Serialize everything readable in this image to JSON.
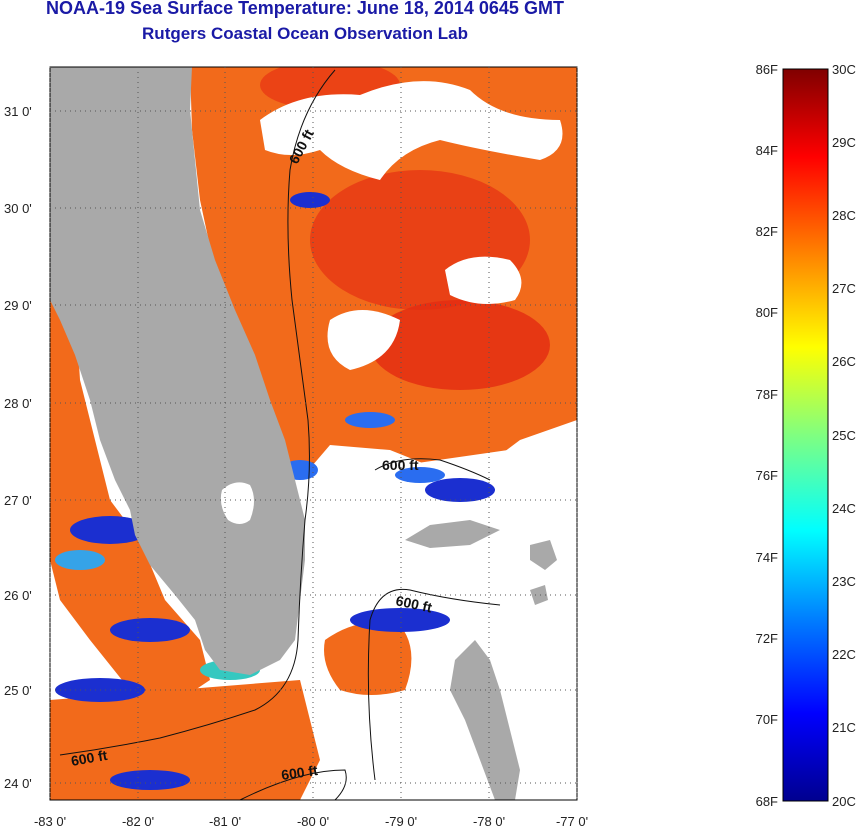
{
  "header": {
    "title_line1": "NOAA-19 Sea Surface Temperature:  June 18, 2014 0645 GMT",
    "title_line2": "Rutgers Coastal Ocean Observation Lab"
  },
  "map": {
    "lat_ticks": [
      "31 0'",
      "30 0'",
      "29 0'",
      "28 0'",
      "27 0'",
      "26 0'",
      "25 0'",
      "24 0'"
    ],
    "lon_ticks": [
      "-83 0'",
      "-82 0'",
      "-81 0'",
      "-80 0'",
      "-79 0'",
      "-78 0'",
      "-77 0'"
    ],
    "isobath_labels": [
      "600 ft",
      "600 ft",
      "600 ft",
      "600 ft",
      "600 ft"
    ],
    "colors": {
      "land": "#a9a9a9",
      "cloud": "#ffffff",
      "warm": "#f26a1b",
      "hot": "#e83a14"
    }
  },
  "colorbar": {
    "f_labels": [
      "86F",
      "84F",
      "82F",
      "80F",
      "78F",
      "76F",
      "74F",
      "72F",
      "70F",
      "68F"
    ],
    "c_labels": [
      "30C",
      "29C",
      "28C",
      "27C",
      "26C",
      "25C",
      "24C",
      "23C",
      "22C",
      "21C",
      "20C"
    ],
    "range_c": [
      20,
      30
    ],
    "colors": [
      "#00008f",
      "#0000ff",
      "#0080ff",
      "#00ffff",
      "#80ff80",
      "#ffff00",
      "#ff8000",
      "#ff0000",
      "#800000"
    ]
  }
}
